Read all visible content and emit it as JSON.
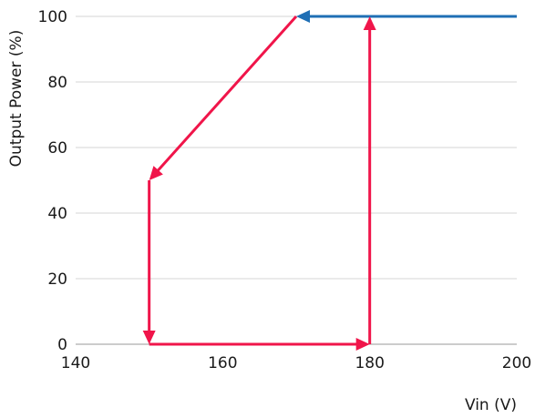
{
  "chart_data": {
    "type": "line",
    "title": "",
    "xlabel": "Vin (V)",
    "ylabel": "Output Power (%)",
    "xlim": [
      140,
      200
    ],
    "ylim": [
      0,
      100
    ],
    "xticks": [
      140,
      160,
      180,
      200
    ],
    "yticks": [
      0,
      20,
      40,
      60,
      80,
      100
    ],
    "grid": "horizontal",
    "legend": "none",
    "series": [
      {
        "color": "#1f6fb5",
        "arrows": "end",
        "points": [
          [
            200,
            100
          ],
          [
            170,
            100
          ]
        ]
      },
      {
        "color": "#f0154a",
        "arrows": "end",
        "points": [
          [
            170,
            100
          ],
          [
            150,
            50
          ]
        ]
      },
      {
        "color": "#f0154a",
        "arrows": "end",
        "points": [
          [
            150,
            50
          ],
          [
            150,
            0
          ]
        ]
      },
      {
        "color": "#f0154a",
        "arrows": "end",
        "points": [
          [
            150,
            0
          ],
          [
            180,
            0
          ]
        ]
      },
      {
        "color": "#f0154a",
        "arrows": "end",
        "points": [
          [
            180,
            0
          ],
          [
            180,
            100
          ]
        ]
      }
    ]
  }
}
